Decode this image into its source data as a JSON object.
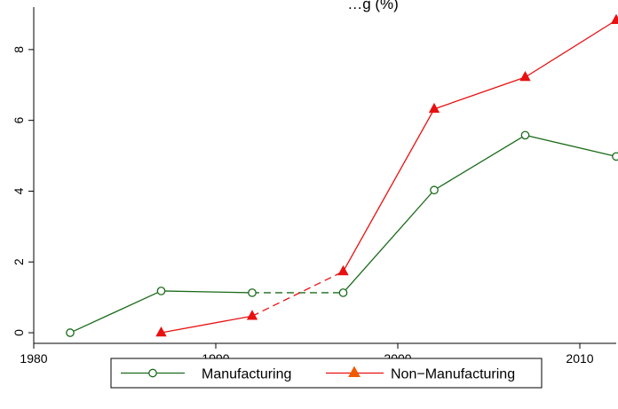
{
  "chart_data": {
    "type": "line",
    "title": "…g       (%)",
    "xlim": [
      1980,
      2012
    ],
    "ylim": [
      -0.3,
      9.2
    ],
    "x_ticks": [
      1980,
      1990,
      2000,
      2010
    ],
    "y_ticks": [
      0,
      2,
      4,
      6,
      8
    ],
    "grid": false,
    "legend_position": "bottom",
    "series": [
      {
        "name": "Manufacturing",
        "color": "#1a6b1a",
        "marker": "circle-open",
        "x": [
          1982,
          1987,
          1992,
          1997,
          2002,
          2007,
          2012
        ],
        "y": [
          0.0,
          1.18,
          1.13,
          1.13,
          4.03,
          5.58,
          4.98
        ],
        "dashed_segments": [
          [
            1992,
            1997
          ]
        ]
      },
      {
        "name": "Non−Manufacturing",
        "color": "#e81010",
        "marker": "triangle-filled",
        "x": [
          1987,
          1992,
          1997,
          2002,
          2007,
          2012
        ],
        "y": [
          0.0,
          0.47,
          1.73,
          6.32,
          7.22,
          8.83
        ],
        "dashed_segments": [
          [
            1992,
            1997
          ]
        ]
      }
    ]
  }
}
